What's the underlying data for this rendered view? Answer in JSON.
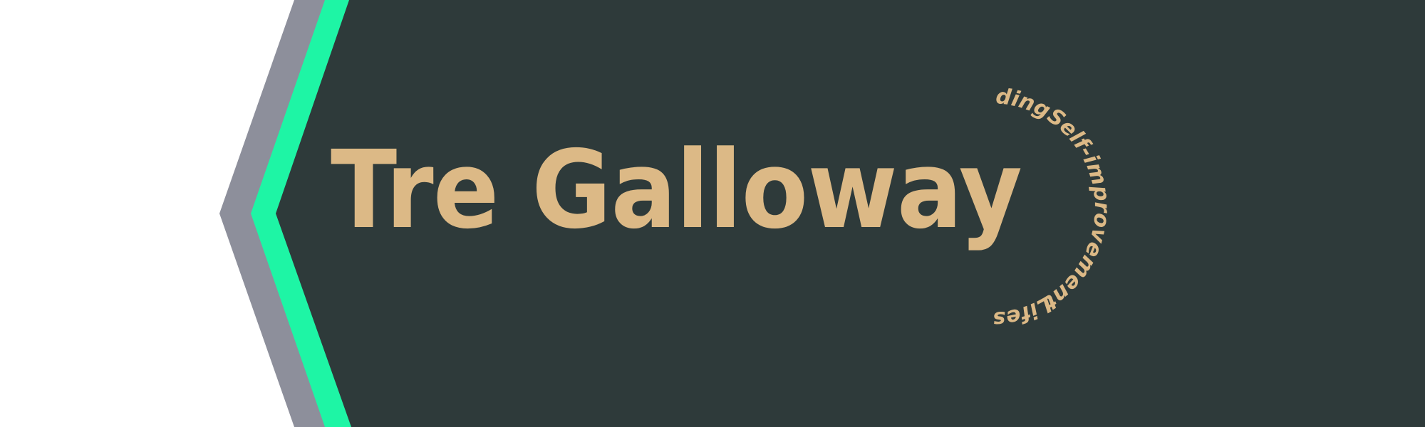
{
  "banner": {
    "title": "Tre Galloway",
    "topics": [
      "Coding",
      "Self-improvement",
      "Lifestyle"
    ]
  },
  "colors": {
    "background_dark": "#2e3a3a",
    "accent_green": "#1ef5a5",
    "accent_gray": "#8d8f9b",
    "text_gold": "#dcb986",
    "page_white": "#ffffff"
  }
}
